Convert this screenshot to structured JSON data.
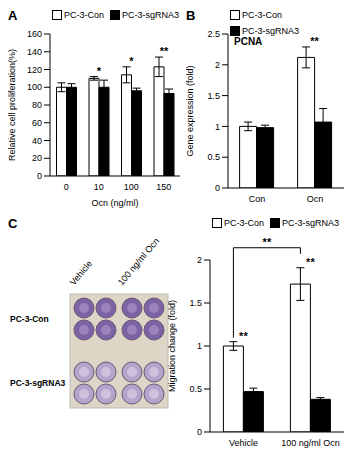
{
  "chart_data": [
    {
      "type": "bar",
      "panel_label": "A",
      "x_label": "Ocn (ng/ml)",
      "y_label": "Relative cell proliferation(%)",
      "categories": [
        "0",
        "10",
        "100",
        "150"
      ],
      "series": [
        {
          "name": "PC-3-Con",
          "color": "#ffffff",
          "values": [
            100,
            110,
            114,
            123
          ],
          "errors": [
            5,
            2,
            9,
            11
          ]
        },
        {
          "name": "PC-3-sgRNA3",
          "color": "#000000",
          "values": [
            100,
            100,
            96,
            93
          ],
          "errors": [
            4,
            8,
            3,
            5
          ]
        }
      ],
      "ylim": [
        0,
        160
      ],
      "yticks": [
        0,
        20,
        40,
        60,
        80,
        100,
        120,
        140,
        160
      ],
      "legend": "top",
      "annotations": [
        {
          "text": "*",
          "x": "10"
        },
        {
          "text": "*",
          "x": "100"
        },
        {
          "text": "**",
          "x": "150"
        }
      ]
    },
    {
      "type": "bar",
      "panel_label": "B",
      "title": "PCNA",
      "y_label": "Gene expression (fold)",
      "categories": [
        "Con",
        "Ocn"
      ],
      "series": [
        {
          "name": "PC-3-Con",
          "color": "#ffffff",
          "values": [
            1.0,
            2.12
          ],
          "errors": [
            0.07,
            0.17
          ]
        },
        {
          "name": "PC-3-sgRNA3",
          "color": "#000000",
          "values": [
            0.98,
            1.07
          ],
          "errors": [
            0.04,
            0.22
          ]
        }
      ],
      "ylim": [
        0,
        2.5
      ],
      "yticks": [
        0,
        0.5,
        1,
        1.5,
        2,
        2.5
      ],
      "legend": "top",
      "annotations": [
        {
          "text": "**",
          "x": "Ocn"
        }
      ]
    },
    {
      "type": "bar",
      "panel_label": "C",
      "y_label": "Migration change (fold)",
      "categories": [
        "Vehicle",
        "100 ng/ml Ocn"
      ],
      "series": [
        {
          "name": "PC-3-Con",
          "color": "#ffffff",
          "values": [
            1.0,
            1.72
          ],
          "errors": [
            0.05,
            0.19
          ]
        },
        {
          "name": "PC-3-sgRNA3",
          "color": "#000000",
          "values": [
            0.47,
            0.38
          ],
          "errors": [
            0.04,
            0.02
          ]
        }
      ],
      "ylim": [
        0,
        2
      ],
      "yticks": [
        0,
        0.5,
        1,
        1.5,
        2
      ],
      "legend": "top",
      "annotations": [
        {
          "text": "**",
          "x": "Vehicle"
        },
        {
          "text": "**",
          "x": "100 ng/ml Ocn"
        },
        {
          "text": "**",
          "from": "Vehicle",
          "to": "100 ng/ml Ocn"
        }
      ]
    }
  ],
  "image": {
    "columns": [
      "Vehicle",
      "100 ng/ml Ocn"
    ],
    "rows": [
      "PC-3-Con",
      "PC-3-sgRNA3"
    ]
  }
}
